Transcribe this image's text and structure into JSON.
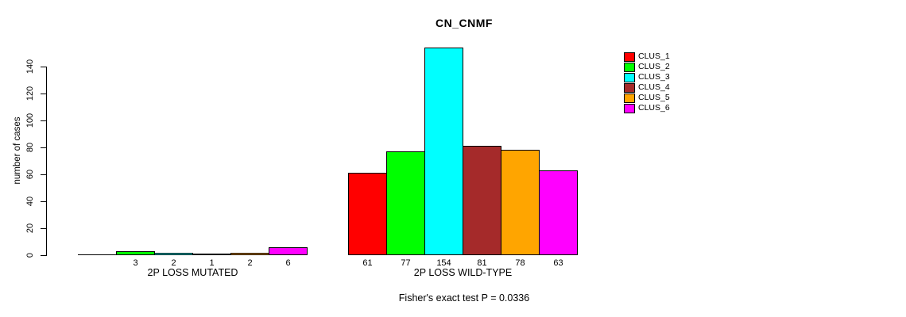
{
  "title": "CN_CNMF",
  "y_axis": {
    "label": "number of cases"
  },
  "caption": "Fisher's exact test P = 0.0336",
  "chart_data": {
    "type": "bar",
    "title": "CN_CNMF",
    "xlabel": "",
    "ylabel": "number of cases",
    "ylim": [
      0,
      154
    ],
    "yticks": [
      0,
      20,
      40,
      60,
      80,
      100,
      120,
      140
    ],
    "grid": false,
    "legend_position": "top-right",
    "categories": [
      "2P LOSS MUTATED",
      "2P LOSS WILD-TYPE"
    ],
    "series": [
      {
        "name": "CLUS_1",
        "color": "#FF0000",
        "values": [
          0,
          61
        ]
      },
      {
        "name": "CLUS_2",
        "color": "#00FF00",
        "values": [
          3,
          77
        ]
      },
      {
        "name": "CLUS_3",
        "color": "#00FFFF",
        "values": [
          2,
          154
        ]
      },
      {
        "name": "CLUS_4",
        "color": "#A52A2A",
        "values": [
          1,
          81
        ]
      },
      {
        "name": "CLUS_5",
        "color": "#FFA500",
        "values": [
          2,
          78
        ]
      },
      {
        "name": "CLUS_6",
        "color": "#FF00FF",
        "values": [
          6,
          63
        ]
      }
    ],
    "bar_labels": [
      [
        "",
        "3",
        "2",
        "1",
        "2",
        "6"
      ],
      [
        "61",
        "77",
        "154",
        "81",
        "78",
        "63"
      ]
    ],
    "annotation": "Fisher's exact test P = 0.0336"
  }
}
